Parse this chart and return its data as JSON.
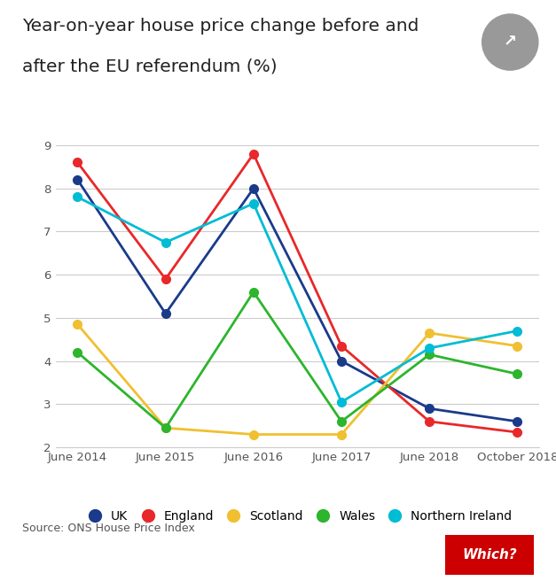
{
  "title_line1": "Year-on-year house price change before and",
  "title_line2": "after the EU referendum (%)",
  "x_labels": [
    "June 2014",
    "June 2015",
    "June 2016",
    "June 2017",
    "June 2018",
    "October 2018"
  ],
  "series": {
    "UK": {
      "values": [
        8.2,
        5.1,
        8.0,
        4.0,
        2.9,
        2.6
      ],
      "color": "#1a3a8a"
    },
    "England": {
      "values": [
        8.6,
        5.9,
        8.8,
        4.35,
        2.6,
        2.35
      ],
      "color": "#e8282a"
    },
    "Scotland": {
      "values": [
        4.85,
        2.45,
        2.3,
        2.3,
        4.65,
        4.35
      ],
      "color": "#f0c030"
    },
    "Wales": {
      "values": [
        4.2,
        2.45,
        5.6,
        2.6,
        4.15,
        3.7
      ],
      "color": "#2db52d"
    },
    "Northern Ireland": {
      "values": [
        7.8,
        6.75,
        7.65,
        3.05,
        4.3,
        4.7
      ],
      "color": "#00bcd4"
    }
  },
  "ylim": [
    2,
    9
  ],
  "yticks": [
    2,
    3,
    4,
    5,
    6,
    7,
    8,
    9
  ],
  "source_text": "Source: ONS House Price Index",
  "background_color": "#ffffff",
  "grid_color": "#cccccc",
  "which_logo_color": "#cc0000",
  "marker_size": 7,
  "line_width": 2,
  "share_icon_color": "#999999"
}
